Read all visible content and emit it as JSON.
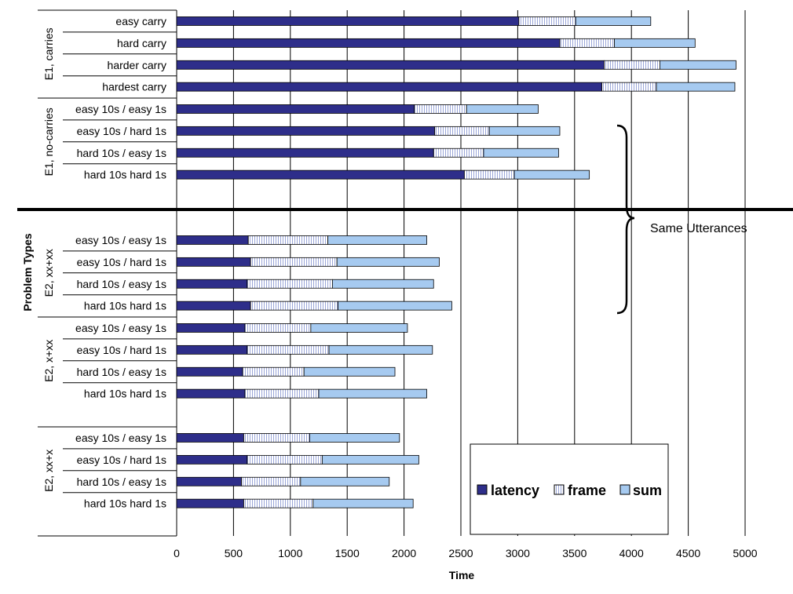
{
  "chart_data": {
    "type": "bar",
    "orientation": "horizontal",
    "stacked": true,
    "xlabel": "Time",
    "ylabel": "Problem Types",
    "xlim": [
      0,
      5000
    ],
    "xticks": [
      "0",
      "500",
      "1000",
      "1500",
      "2000",
      "2500",
      "3000",
      "3500",
      "4000",
      "4500",
      "5000"
    ],
    "grid": "vertical",
    "legend": {
      "placement": "bottom-right",
      "entries": [
        "latency",
        "frame",
        "sum"
      ]
    },
    "series_colors": {
      "latency": "#2e2e8a",
      "frame": "#dfe4f7",
      "sum": "#a6caf0"
    },
    "groups": [
      {
        "label": "E1, carries",
        "rows": [
          {
            "category": "easy carry",
            "latency": 3010,
            "frame": 500,
            "sum": 660
          },
          {
            "category": "hard carry",
            "latency": 3370,
            "frame": 480,
            "sum": 710
          },
          {
            "category": "harder carry",
            "latency": 3760,
            "frame": 490,
            "sum": 670
          },
          {
            "category": "hardest carry",
            "latency": 3740,
            "frame": 480,
            "sum": 690
          }
        ]
      },
      {
        "label": "E1, no-carries",
        "rows": [
          {
            "category": "easy 10s / easy 1s",
            "latency": 2090,
            "frame": 460,
            "sum": 630
          },
          {
            "category": "easy 10s / hard 1s",
            "latency": 2270,
            "frame": 480,
            "sum": 620
          },
          {
            "category": "hard 10s / easy 1s",
            "latency": 2260,
            "frame": 440,
            "sum": 660
          },
          {
            "category": "hard 10s hard 1s",
            "latency": 2530,
            "frame": 440,
            "sum": 660
          }
        ]
      },
      {
        "label": "E2, xx+xx",
        "rows": [
          {
            "category": "easy 10s / easy 1s",
            "latency": 630,
            "frame": 700,
            "sum": 870
          },
          {
            "category": "easy 10s / hard 1s",
            "latency": 650,
            "frame": 760,
            "sum": 900
          },
          {
            "category": "hard 10s / easy 1s",
            "latency": 620,
            "frame": 750,
            "sum": 890
          },
          {
            "category": "hard 10s hard 1s",
            "latency": 650,
            "frame": 770,
            "sum": 1000
          }
        ]
      },
      {
        "label": "E2, x+xx",
        "rows": [
          {
            "category": "easy 10s / easy 1s",
            "latency": 600,
            "frame": 580,
            "sum": 850
          },
          {
            "category": "easy 10s / hard 1s",
            "latency": 620,
            "frame": 720,
            "sum": 910
          },
          {
            "category": "hard 10s / easy 1s",
            "latency": 580,
            "frame": 540,
            "sum": 800
          },
          {
            "category": "hard 10s hard 1s",
            "latency": 600,
            "frame": 650,
            "sum": 950
          }
        ]
      },
      {
        "label": "E2, xx+x",
        "rows": [
          {
            "category": "easy 10s / easy 1s",
            "latency": 590,
            "frame": 580,
            "sum": 790
          },
          {
            "category": "easy 10s / hard 1s",
            "latency": 620,
            "frame": 660,
            "sum": 850
          },
          {
            "category": "hard 10s / easy 1s",
            "latency": 570,
            "frame": 520,
            "sum": 780
          },
          {
            "category": "hard 10s hard 1s",
            "latency": 590,
            "frame": 610,
            "sum": 880
          }
        ]
      }
    ],
    "annotations": [
      {
        "text": "Same Utterances",
        "type": "brace",
        "spans_rows": "E1 no-carries and E2 xx+xx"
      }
    ]
  }
}
